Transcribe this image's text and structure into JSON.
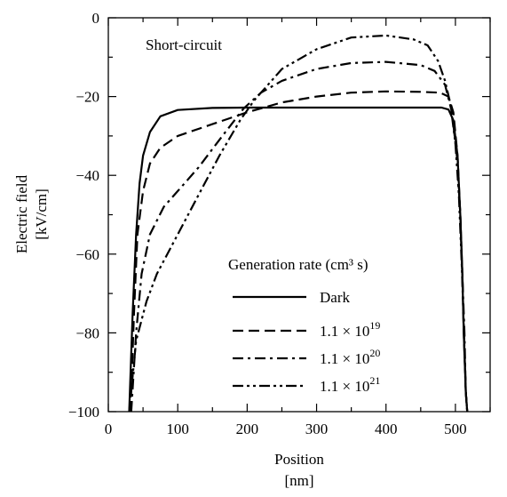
{
  "chart_data": {
    "type": "line",
    "annotation": "Short-circuit",
    "xlabel": "Position",
    "xlabel_unit": "[nm]",
    "ylabel": "Electric field",
    "ylabel_unit": "[kV/cm]",
    "xlim": [
      0,
      550
    ],
    "ylim": [
      -100,
      0
    ],
    "xticks": [
      0,
      100,
      200,
      300,
      400,
      500
    ],
    "yticks": [
      0,
      -20,
      -40,
      -60,
      -80,
      -100
    ],
    "grid": false,
    "legend": {
      "title": "Generation rate (cm³ s)",
      "placement": "bottom-right"
    },
    "series": [
      {
        "name": "Dark",
        "label_base": "Dark",
        "label_exp": "",
        "dash": "solid",
        "x": [
          30,
          35,
          40,
          45,
          50,
          60,
          75,
          100,
          150,
          200,
          300,
          400,
          480,
          490,
          497,
          503,
          507,
          510,
          512,
          515,
          517
        ],
        "y": [
          -100,
          -75,
          -55,
          -42,
          -35,
          -29,
          -25,
          -23.4,
          -22.9,
          -22.8,
          -22.8,
          -22.8,
          -22.8,
          -23.3,
          -26,
          -35,
          -50,
          -65,
          -80,
          -95,
          -100
        ]
      },
      {
        "name": "1.1 × 10^19",
        "label_base": "1.1 × 10",
        "label_exp": "19",
        "dash": "dashed",
        "x": [
          32,
          37,
          42,
          50,
          60,
          75,
          100,
          150,
          200,
          250,
          300,
          350,
          400,
          450,
          478,
          490,
          497,
          503,
          507,
          510,
          512,
          515,
          517
        ],
        "y": [
          -100,
          -75,
          -55,
          -44,
          -37,
          -33,
          -30,
          -27,
          -24,
          -21.5,
          -20,
          -19,
          -18.7,
          -18.8,
          -19,
          -20,
          -24,
          -35,
          -50,
          -65,
          -80,
          -95,
          -100
        ]
      },
      {
        "name": "1.1 × 10^20",
        "label_base": "1.1 × 10",
        "label_exp": "20",
        "dash": "dashdot",
        "x": [
          33,
          40,
          48,
          60,
          80,
          100,
          130,
          160,
          195,
          220,
          250,
          300,
          350,
          400,
          450,
          470,
          485,
          495,
          502,
          507,
          510,
          513,
          515,
          517
        ],
        "y": [
          -100,
          -80,
          -65,
          -55,
          -48,
          -44,
          -38,
          -31,
          -23,
          -19,
          -16,
          -13,
          -11.5,
          -11.2,
          -12,
          -13.5,
          -17,
          -24,
          -35,
          -50,
          -65,
          -80,
          -95,
          -100
        ]
      },
      {
        "name": "1.1 × 10^21",
        "label_base": "1.1 × 10",
        "label_exp": "21",
        "dash": "dashdotdot",
        "x": [
          30,
          40,
          55,
          70,
          100,
          130,
          160,
          190,
          210,
          250,
          300,
          350,
          400,
          440,
          460,
          475,
          485,
          493,
          500,
          505,
          509,
          512,
          515,
          517
        ],
        "y": [
          -100,
          -82,
          -72,
          -65,
          -55,
          -45,
          -35,
          -26,
          -21,
          -13,
          -8,
          -5,
          -4.5,
          -5.5,
          -7,
          -11,
          -16,
          -22,
          -32,
          -45,
          -62,
          -78,
          -95,
          -100
        ]
      }
    ]
  }
}
